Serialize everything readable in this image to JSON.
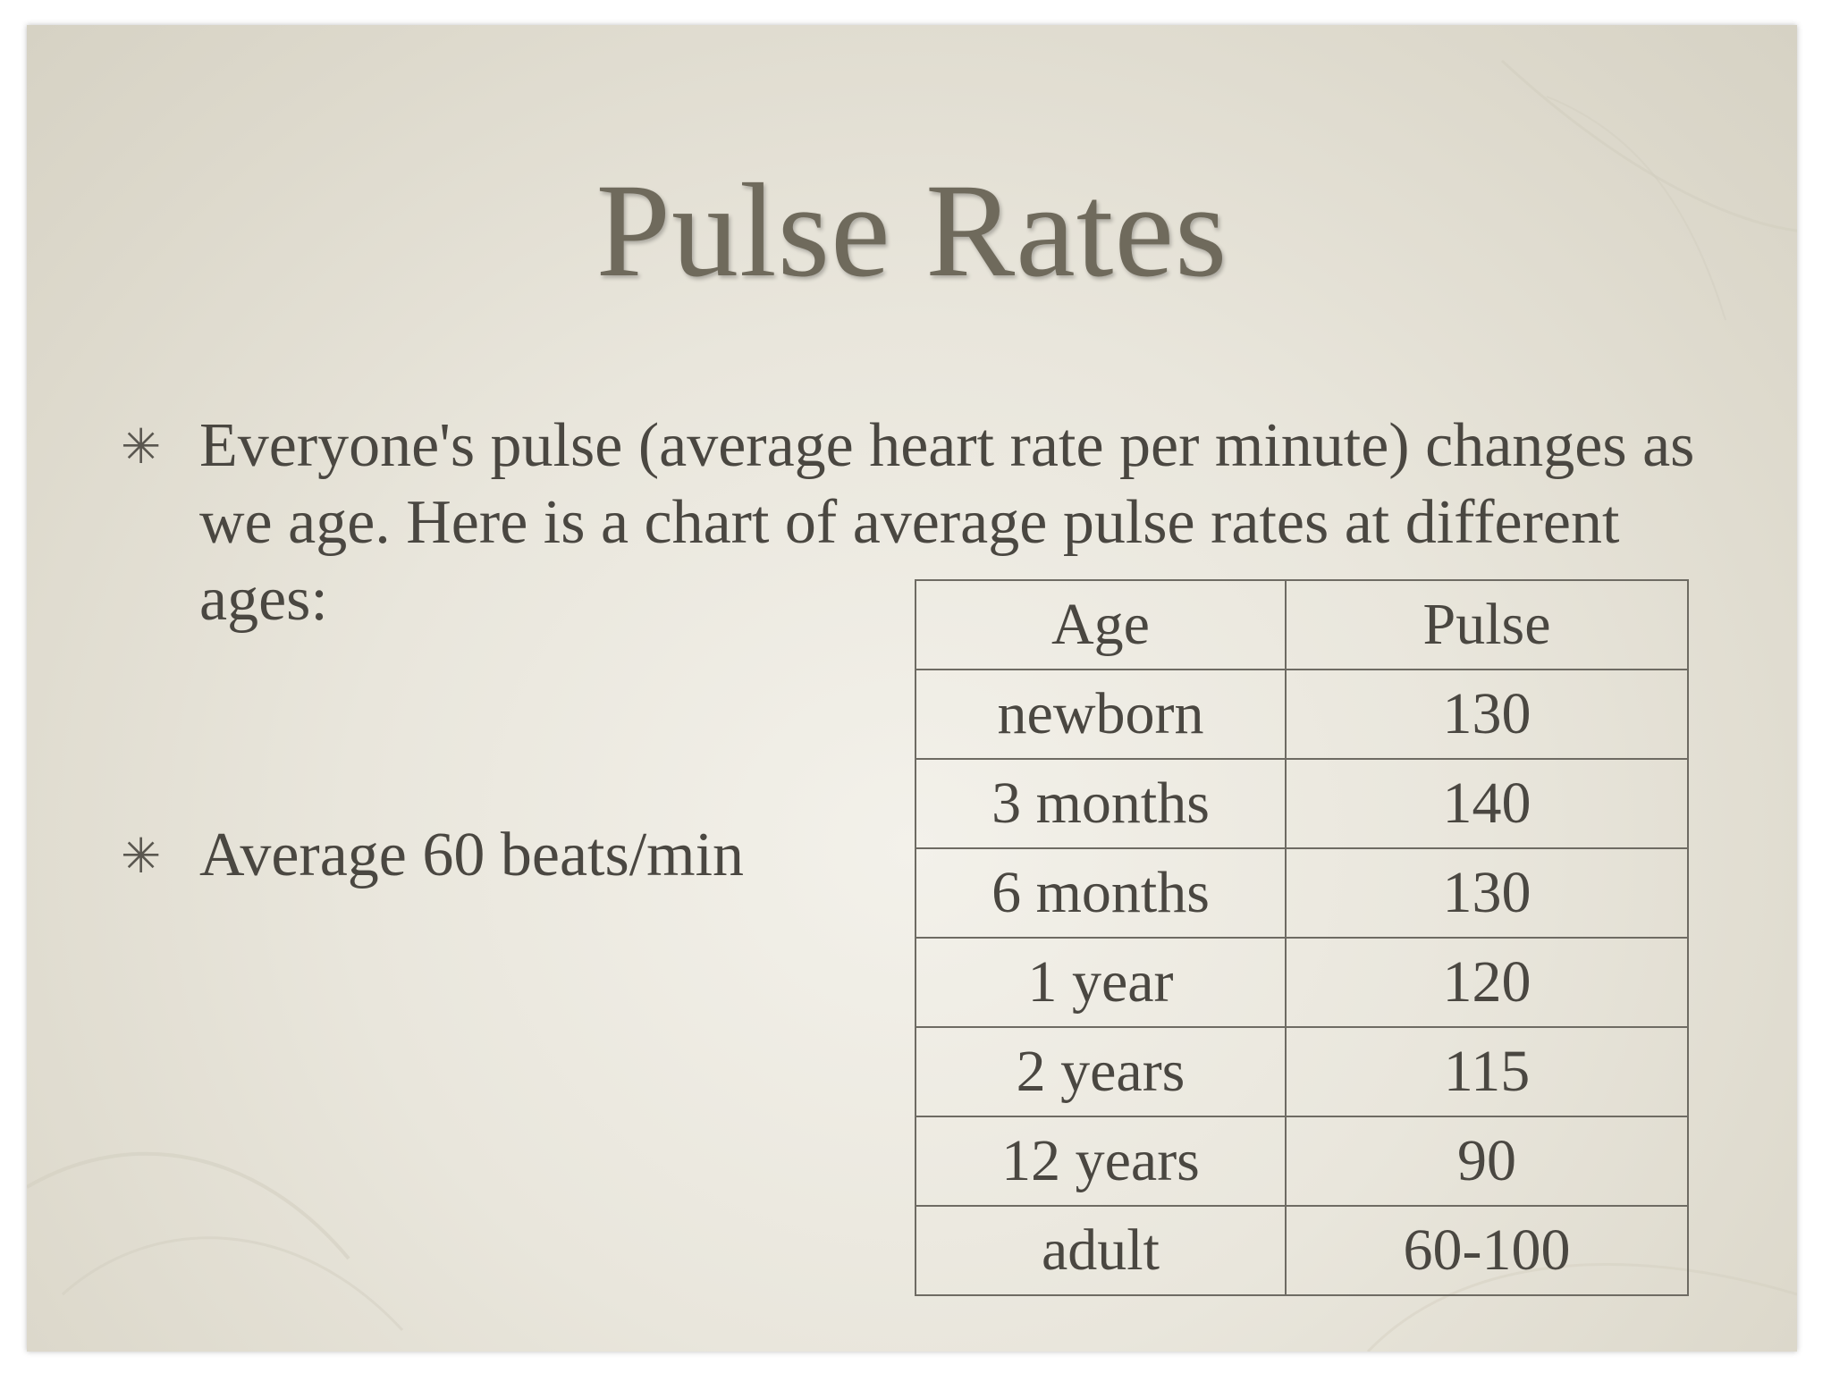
{
  "slide": {
    "title": "Pulse Rates",
    "bullets": [
      "Everyone's pulse (average heart rate per minute) changes as we age. Here is a chart of average pulse rates at different ages:",
      "Average 60 beats/min"
    ],
    "bullet_icon": "asterisk-icon",
    "bullet_symbol": "✳",
    "colors": {
      "background": "#e9e6dc",
      "title": "#6f6a5c",
      "text": "#4a4741",
      "table_border": "#6e6b63"
    }
  },
  "table": {
    "headers": [
      "Age",
      "Pulse"
    ],
    "rows": [
      [
        "newborn",
        "130"
      ],
      [
        "3 months",
        "140"
      ],
      [
        "6 months",
        "130"
      ],
      [
        "1 year",
        "120"
      ],
      [
        "2 years",
        "115"
      ],
      [
        "12 years",
        "90"
      ],
      [
        "adult",
        "60-100"
      ]
    ]
  }
}
